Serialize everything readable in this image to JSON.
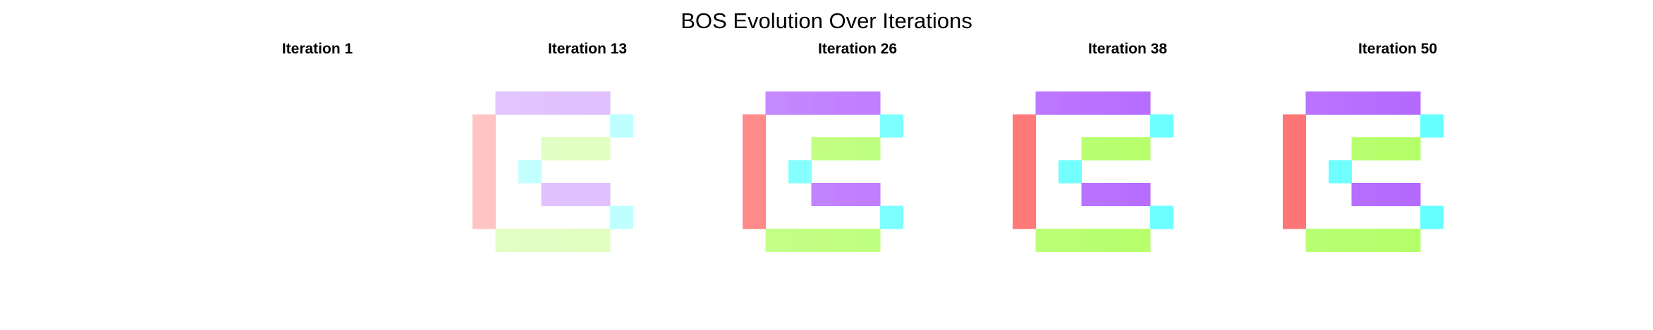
{
  "chart_data": {
    "type": "heatmap",
    "title": "BOS Evolution Over Iterations",
    "grid": false,
    "axes_visible": false,
    "colors": {
      "red": "#ff6666",
      "cyan": "#66ffff",
      "green": "#b3ff66",
      "purple": "#b366ff"
    },
    "glyph_cells": [
      {
        "row": 0,
        "col": 1,
        "color": "purple"
      },
      {
        "row": 0,
        "col": 2,
        "color": "purple"
      },
      {
        "row": 0,
        "col": 3,
        "color": "purple"
      },
      {
        "row": 0,
        "col": 4,
        "color": "purple"
      },
      {
        "row": 0,
        "col": 5,
        "color": "purple"
      },
      {
        "row": 1,
        "col": 0,
        "color": "red"
      },
      {
        "row": 1,
        "col": 6,
        "color": "cyan"
      },
      {
        "row": 2,
        "col": 0,
        "color": "red"
      },
      {
        "row": 2,
        "col": 3,
        "color": "green"
      },
      {
        "row": 2,
        "col": 4,
        "color": "green"
      },
      {
        "row": 2,
        "col": 5,
        "color": "green"
      },
      {
        "row": 3,
        "col": 0,
        "color": "red"
      },
      {
        "row": 3,
        "col": 2,
        "color": "cyan"
      },
      {
        "row": 4,
        "col": 0,
        "color": "red"
      },
      {
        "row": 4,
        "col": 3,
        "color": "purple"
      },
      {
        "row": 4,
        "col": 4,
        "color": "purple"
      },
      {
        "row": 4,
        "col": 5,
        "color": "purple"
      },
      {
        "row": 5,
        "col": 0,
        "color": "red"
      },
      {
        "row": 5,
        "col": 6,
        "color": "cyan"
      },
      {
        "row": 6,
        "col": 1,
        "color": "green"
      },
      {
        "row": 6,
        "col": 2,
        "color": "green"
      },
      {
        "row": 6,
        "col": 3,
        "color": "green"
      },
      {
        "row": 6,
        "col": 4,
        "color": "green"
      },
      {
        "row": 6,
        "col": 5,
        "color": "green"
      }
    ],
    "panels": [
      {
        "title": "Iteration 1",
        "iteration": 1,
        "intensity": 0.0
      },
      {
        "title": "Iteration 13",
        "iteration": 13,
        "intensity": 0.42
      },
      {
        "title": "Iteration 26",
        "iteration": 26,
        "intensity": 0.85
      },
      {
        "title": "Iteration 38",
        "iteration": 38,
        "intensity": 0.97
      },
      {
        "title": "Iteration 50",
        "iteration": 50,
        "intensity": 1.0
      }
    ]
  }
}
